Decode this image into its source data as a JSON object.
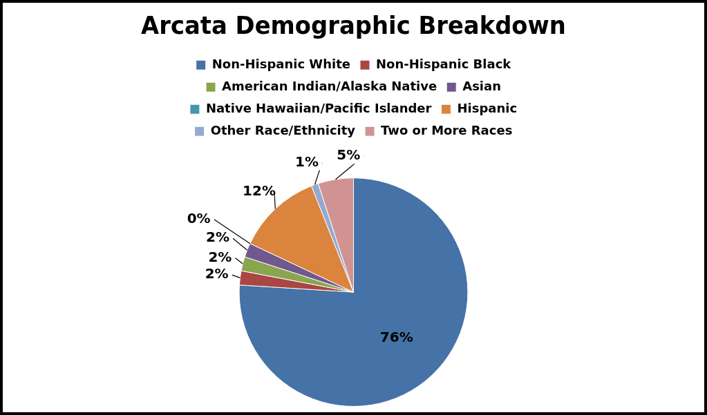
{
  "chart_data": {
    "type": "pie",
    "title": "Arcata Demographic Breakdown",
    "categories": [
      "Non-Hispanic White",
      "Non-Hispanic Black",
      "American Indian/Alaska Native",
      "Asian",
      "Native Hawaiian/Pacific Islander",
      "Hispanic",
      "Other Race/Ethnicity",
      "Two or More Races"
    ],
    "values": [
      76,
      2,
      2,
      2,
      0,
      12,
      1,
      5
    ],
    "value_labels": [
      "76%",
      "2%",
      "2%",
      "2%",
      "0%",
      "12%",
      "1%",
      "5%"
    ],
    "colors": [
      "#4572a7",
      "#aa4643",
      "#89a54e",
      "#71588f",
      "#4198af",
      "#db843d",
      "#93a9cf",
      "#d19392"
    ],
    "legend": "top"
  }
}
